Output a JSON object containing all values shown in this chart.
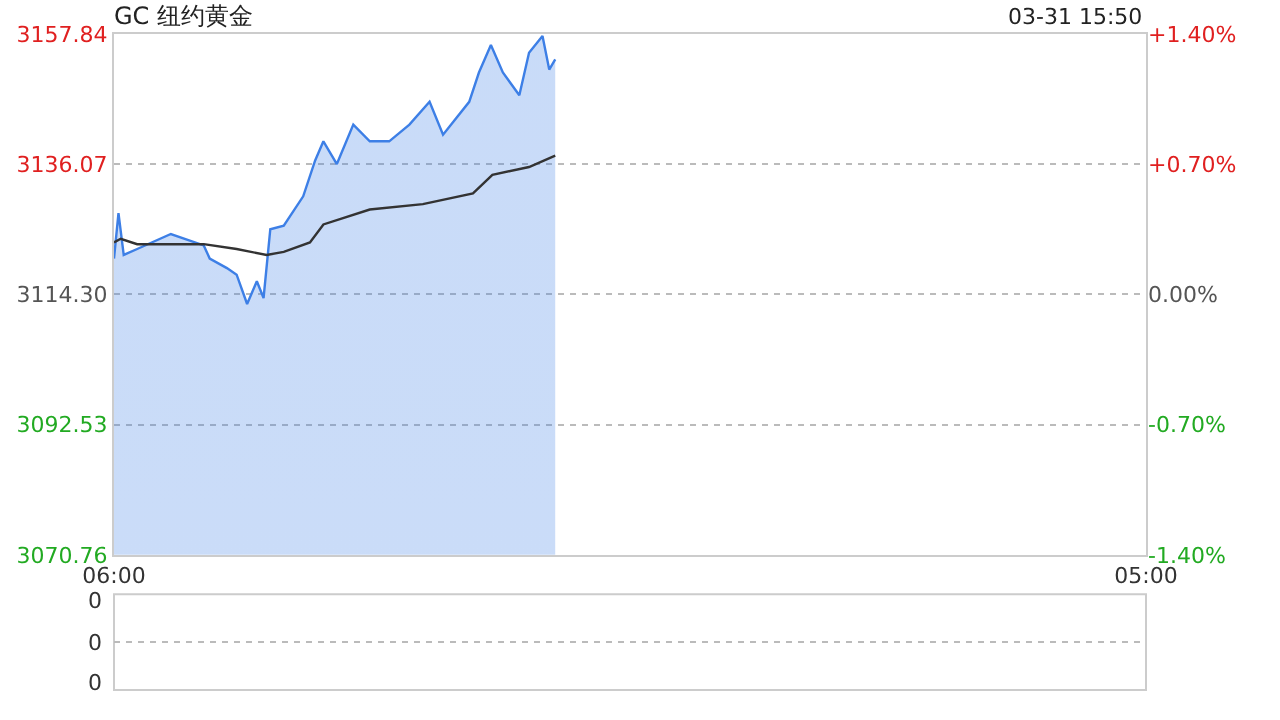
{
  "chart_data": [
    {
      "type": "area",
      "title": "GC 纽约黄金",
      "annotations": [
        "03-31 15:50"
      ],
      "xlim": [
        "--03-31T06:00",
        "--04-01T05:00"
      ],
      "xticks": [
        {
          "value": "--03-31T06:00",
          "label": "06:00"
        },
        {
          "value": "--04-01T05:00",
          "label": "05:00"
        }
      ],
      "ylim": [
        3070.76,
        3157.84
      ],
      "yticks": [
        {
          "value": 3070.76,
          "label": "3070.76"
        },
        {
          "value": 3092.53,
          "label": "3092.53"
        },
        {
          "value": 3114.3,
          "label": "3114.30"
        },
        {
          "value": 3136.07,
          "label": "3136.07"
        },
        {
          "value": 3157.84,
          "label": "3157.84"
        }
      ],
      "y2lim": [
        -1.4,
        1.4
      ],
      "y2ticks": [
        {
          "value": -1.4,
          "label": "-1.40%"
        },
        {
          "value": -0.7,
          "label": "-0.70%"
        },
        {
          "value": 0,
          "label": "0.00%"
        },
        {
          "value": 0.7,
          "label": "+0.70%"
        },
        {
          "value": 1.4,
          "label": "+1.40%"
        }
      ],
      "grid": "y",
      "series": [
        {
          "color": "#3d7fe6",
          "x": [
            "--03-31T06:00",
            "--03-31T06:06",
            "--03-31T06:13",
            "--03-31T06:31",
            "--03-31T07:16",
            "--03-31T08:00",
            "--03-31T08:08",
            "--03-31T08:31",
            "--03-31T08:44",
            "--03-31T08:58",
            "--03-31T09:11",
            "--03-31T09:20",
            "--03-31T09:29",
            "--03-31T09:47",
            "--03-31T10:13",
            "--03-31T10:29",
            "--03-31T10:40",
            "--03-31T10:58",
            "--03-31T11:20",
            "--03-31T11:42",
            "--03-31T12:08",
            "--03-31T12:35",
            "--03-31T13:02",
            "--03-31T13:20",
            "--03-31T13:55",
            "--03-31T14:08",
            "--03-31T14:24",
            "--03-31T14:40",
            "--03-31T15:02",
            "--03-31T15:15",
            "--03-31T15:33",
            "--03-31T15:42",
            "--03-31T15:50"
          ],
          "values": [
            3120.3,
            3127.9,
            3120.9,
            3121.9,
            3124.4,
            3122.5,
            3120.3,
            3118.7,
            3117.6,
            3112.7,
            3116.5,
            3113.7,
            3125.2,
            3125.8,
            3130.7,
            3136.7,
            3139.9,
            3136.1,
            3142.7,
            3139.9,
            3139.9,
            3142.7,
            3146.5,
            3141.0,
            3146.5,
            3151.4,
            3156.0,
            3151.4,
            3147.6,
            3154.7,
            3157.5,
            3151.9,
            3153.6
          ]
        },
        {
          "type": "line",
          "color": "#333333",
          "x": [
            "--03-31T06:00",
            "--03-31T06:09",
            "--03-31T06:31",
            "--03-31T08:00",
            "--03-31T08:44",
            "--03-31T09:24",
            "--03-31T09:47",
            "--03-31T10:22",
            "--03-31T10:40",
            "--03-31T11:42",
            "--03-31T12:53",
            "--03-31T14:00",
            "--03-31T14:26",
            "--03-31T15:15",
            "--03-31T15:50"
          ],
          "values": [
            3123.0,
            3123.6,
            3122.7,
            3122.7,
            3121.9,
            3120.9,
            3121.4,
            3123.0,
            3126.0,
            3128.5,
            3129.4,
            3131.2,
            3134.3,
            3135.6,
            3137.5
          ]
        }
      ]
    },
    {
      "type": "other",
      "annotations": [
        "0",
        "0",
        "0"
      ]
    }
  ]
}
